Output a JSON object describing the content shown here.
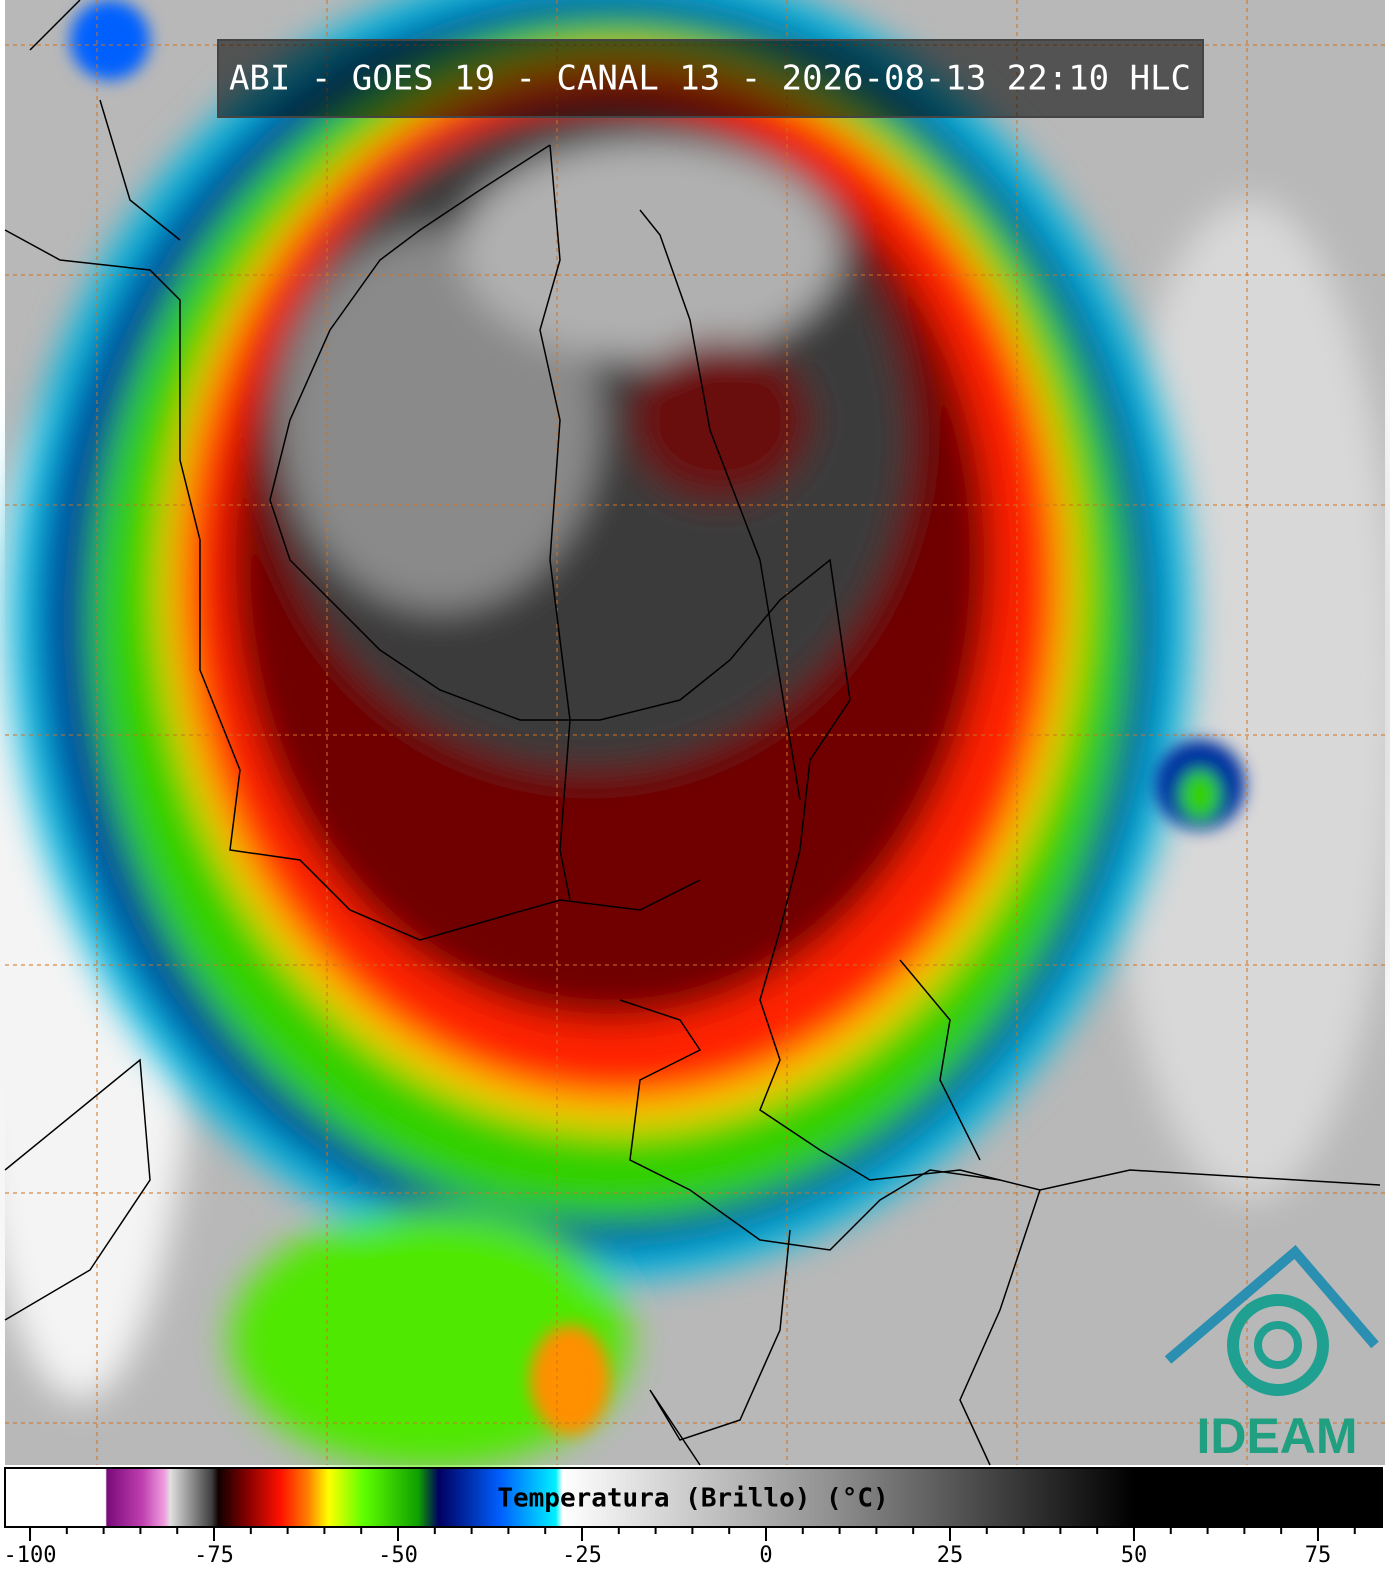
{
  "header": {
    "title": "ABI - GOES 19 - CANAL 13 - 2026-08-13 22:10 HLC"
  },
  "colorbar": {
    "label": "Temperatura (Brillo) (°C)",
    "lim": [
      -103.4,
      83.7
    ],
    "ticks": [
      -100,
      -75,
      -50,
      -25,
      0,
      25,
      50,
      75
    ],
    "minor_step": 5
  },
  "logo": {
    "text": "IDEAM"
  }
}
